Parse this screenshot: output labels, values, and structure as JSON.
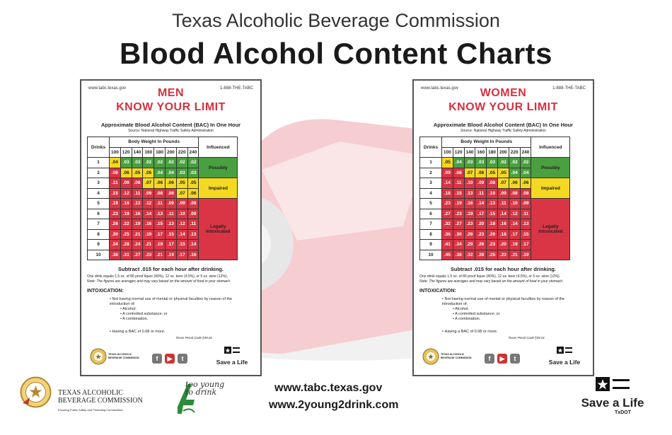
{
  "header": {
    "org": "Texas Alcoholic Beverage Commission",
    "title": "Blood Alcohol Content Charts"
  },
  "card_common": {
    "website": "www.tabc.texas.gov",
    "phone": "1-888-THE-TABC",
    "subtitle": "Approximate Blood Alcohol Content (BAC) In One Hour",
    "source": "Source: National Highway Traffic Safety Administration",
    "drinks_header": "Drinks",
    "weight_header": "Body Weight In Pounds",
    "influence_header": "Influenced",
    "influence_possibly": "Possibly",
    "influence_impaired": "Impaired",
    "influence_legally": "Legally Intoxicated",
    "subtract": "Subtract .015 for each hour after drinking.",
    "note1": "One drink equals 1.5 oz. of 80 proof liquor (40%), 12 oz. beer (4.5%), or 5 oz. wine (12%).",
    "note2": "Note: The figures are averages and may vary based on the amount of food in your stomach.",
    "intox_title": "INTOXICATION:",
    "intox_line1": "Not having normal use of mental or physical faculties by reason of the introduction of:",
    "intox_alcohol": "Alcohol;",
    "intox_substance": "A controlled substance; or",
    "intox_combination": "A combination.",
    "bac_line": "Having a BAC of 0.08 or more.",
    "penal_code": "Texas Penal Code §49.01",
    "logo_text": "TEXAS ALCOHOLIC BEVERAGE COMMISSION",
    "save_a_life": "Save a Life"
  },
  "men": {
    "title1": "MEN",
    "title2": "KNOW YOUR LIMIT",
    "weights": [
      "100",
      "120",
      "140",
      "160",
      "180",
      "200",
      "220",
      "240"
    ],
    "rows": [
      {
        "drinks": "1",
        "values": [
          ".04",
          ".03",
          ".03",
          ".02",
          ".02",
          ".02",
          ".02",
          ".02"
        ]
      },
      {
        "drinks": "2",
        "values": [
          ".08",
          ".06",
          ".05",
          ".05",
          ".04",
          ".04",
          ".03",
          ".03"
        ]
      },
      {
        "drinks": "3",
        "values": [
          ".11",
          ".09",
          ".08",
          ".07",
          ".06",
          ".06",
          ".05",
          ".05"
        ]
      },
      {
        "drinks": "4",
        "values": [
          ".15",
          ".12",
          ".11",
          ".09",
          ".08",
          ".08",
          ".07",
          ".06"
        ]
      },
      {
        "drinks": "5",
        "values": [
          ".19",
          ".16",
          ".13",
          ".12",
          ".11",
          ".09",
          ".09",
          ".08"
        ]
      },
      {
        "drinks": "6",
        "values": [
          ".23",
          ".19",
          ".16",
          ".14",
          ".13",
          ".11",
          ".10",
          ".09"
        ]
      },
      {
        "drinks": "7",
        "values": [
          ".26",
          ".22",
          ".19",
          ".16",
          ".15",
          ".13",
          ".12",
          ".11"
        ]
      },
      {
        "drinks": "8",
        "values": [
          ".30",
          ".25",
          ".21",
          ".19",
          ".17",
          ".15",
          ".14",
          ".13"
        ]
      },
      {
        "drinks": "9",
        "values": [
          ".34",
          ".28",
          ".24",
          ".21",
          ".19",
          ".17",
          ".15",
          ".14"
        ]
      },
      {
        "drinks": "10",
        "values": [
          ".38",
          ".31",
          ".27",
          ".23",
          ".21",
          ".19",
          ".17",
          ".16"
        ]
      }
    ]
  },
  "women": {
    "title1": "WOMEN",
    "title2": "KNOW YOUR LIMIT",
    "weights": [
      "100",
      "120",
      "140",
      "160",
      "180",
      "200",
      "220",
      "240"
    ],
    "rows": [
      {
        "drinks": "1",
        "values": [
          ".05",
          ".04",
          ".03",
          ".03",
          ".03",
          ".02",
          ".02",
          ".02"
        ]
      },
      {
        "drinks": "2",
        "values": [
          ".09",
          ".08",
          ".07",
          ".06",
          ".05",
          ".05",
          ".04",
          ".04"
        ]
      },
      {
        "drinks": "3",
        "values": [
          ".14",
          ".11",
          ".10",
          ".09",
          ".08",
          ".07",
          ".06",
          ".06"
        ]
      },
      {
        "drinks": "4",
        "values": [
          ".18",
          ".15",
          ".13",
          ".11",
          ".10",
          ".09",
          ".08",
          ".08"
        ]
      },
      {
        "drinks": "5",
        "values": [
          ".23",
          ".19",
          ".16",
          ".14",
          ".13",
          ".11",
          ".10",
          ".09"
        ]
      },
      {
        "drinks": "6",
        "values": [
          ".27",
          ".23",
          ".19",
          ".17",
          ".15",
          ".14",
          ".12",
          ".11"
        ]
      },
      {
        "drinks": "7",
        "values": [
          ".32",
          ".27",
          ".23",
          ".20",
          ".18",
          ".16",
          ".14",
          ".13"
        ]
      },
      {
        "drinks": "8",
        "values": [
          ".36",
          ".30",
          ".26",
          ".23",
          ".20",
          ".18",
          ".17",
          ".15"
        ]
      },
      {
        "drinks": "9",
        "values": [
          ".41",
          ".34",
          ".29",
          ".26",
          ".23",
          ".20",
          ".19",
          ".17"
        ]
      },
      {
        "drinks": "10",
        "values": [
          ".45",
          ".38",
          ".32",
          ".28",
          ".25",
          ".23",
          ".21",
          ".19"
        ]
      }
    ]
  },
  "footer": {
    "org_line1": "TEXAS ALCOHOLIC",
    "org_line2": "BEVERAGE COMMISSION",
    "org_tagline": "Ensuring Public Safety and Protecting Communities",
    "too_young": "too young to drink",
    "url1": "www.tabc.texas.gov",
    "url2": "www.2young2drink.com",
    "save_a_life": "Save a Life",
    "txdot": "TxDOT"
  },
  "colors": {
    "green": "#4aa040",
    "yellow": "#f4d922",
    "red": "#d93545",
    "title_red": "#d93040"
  }
}
